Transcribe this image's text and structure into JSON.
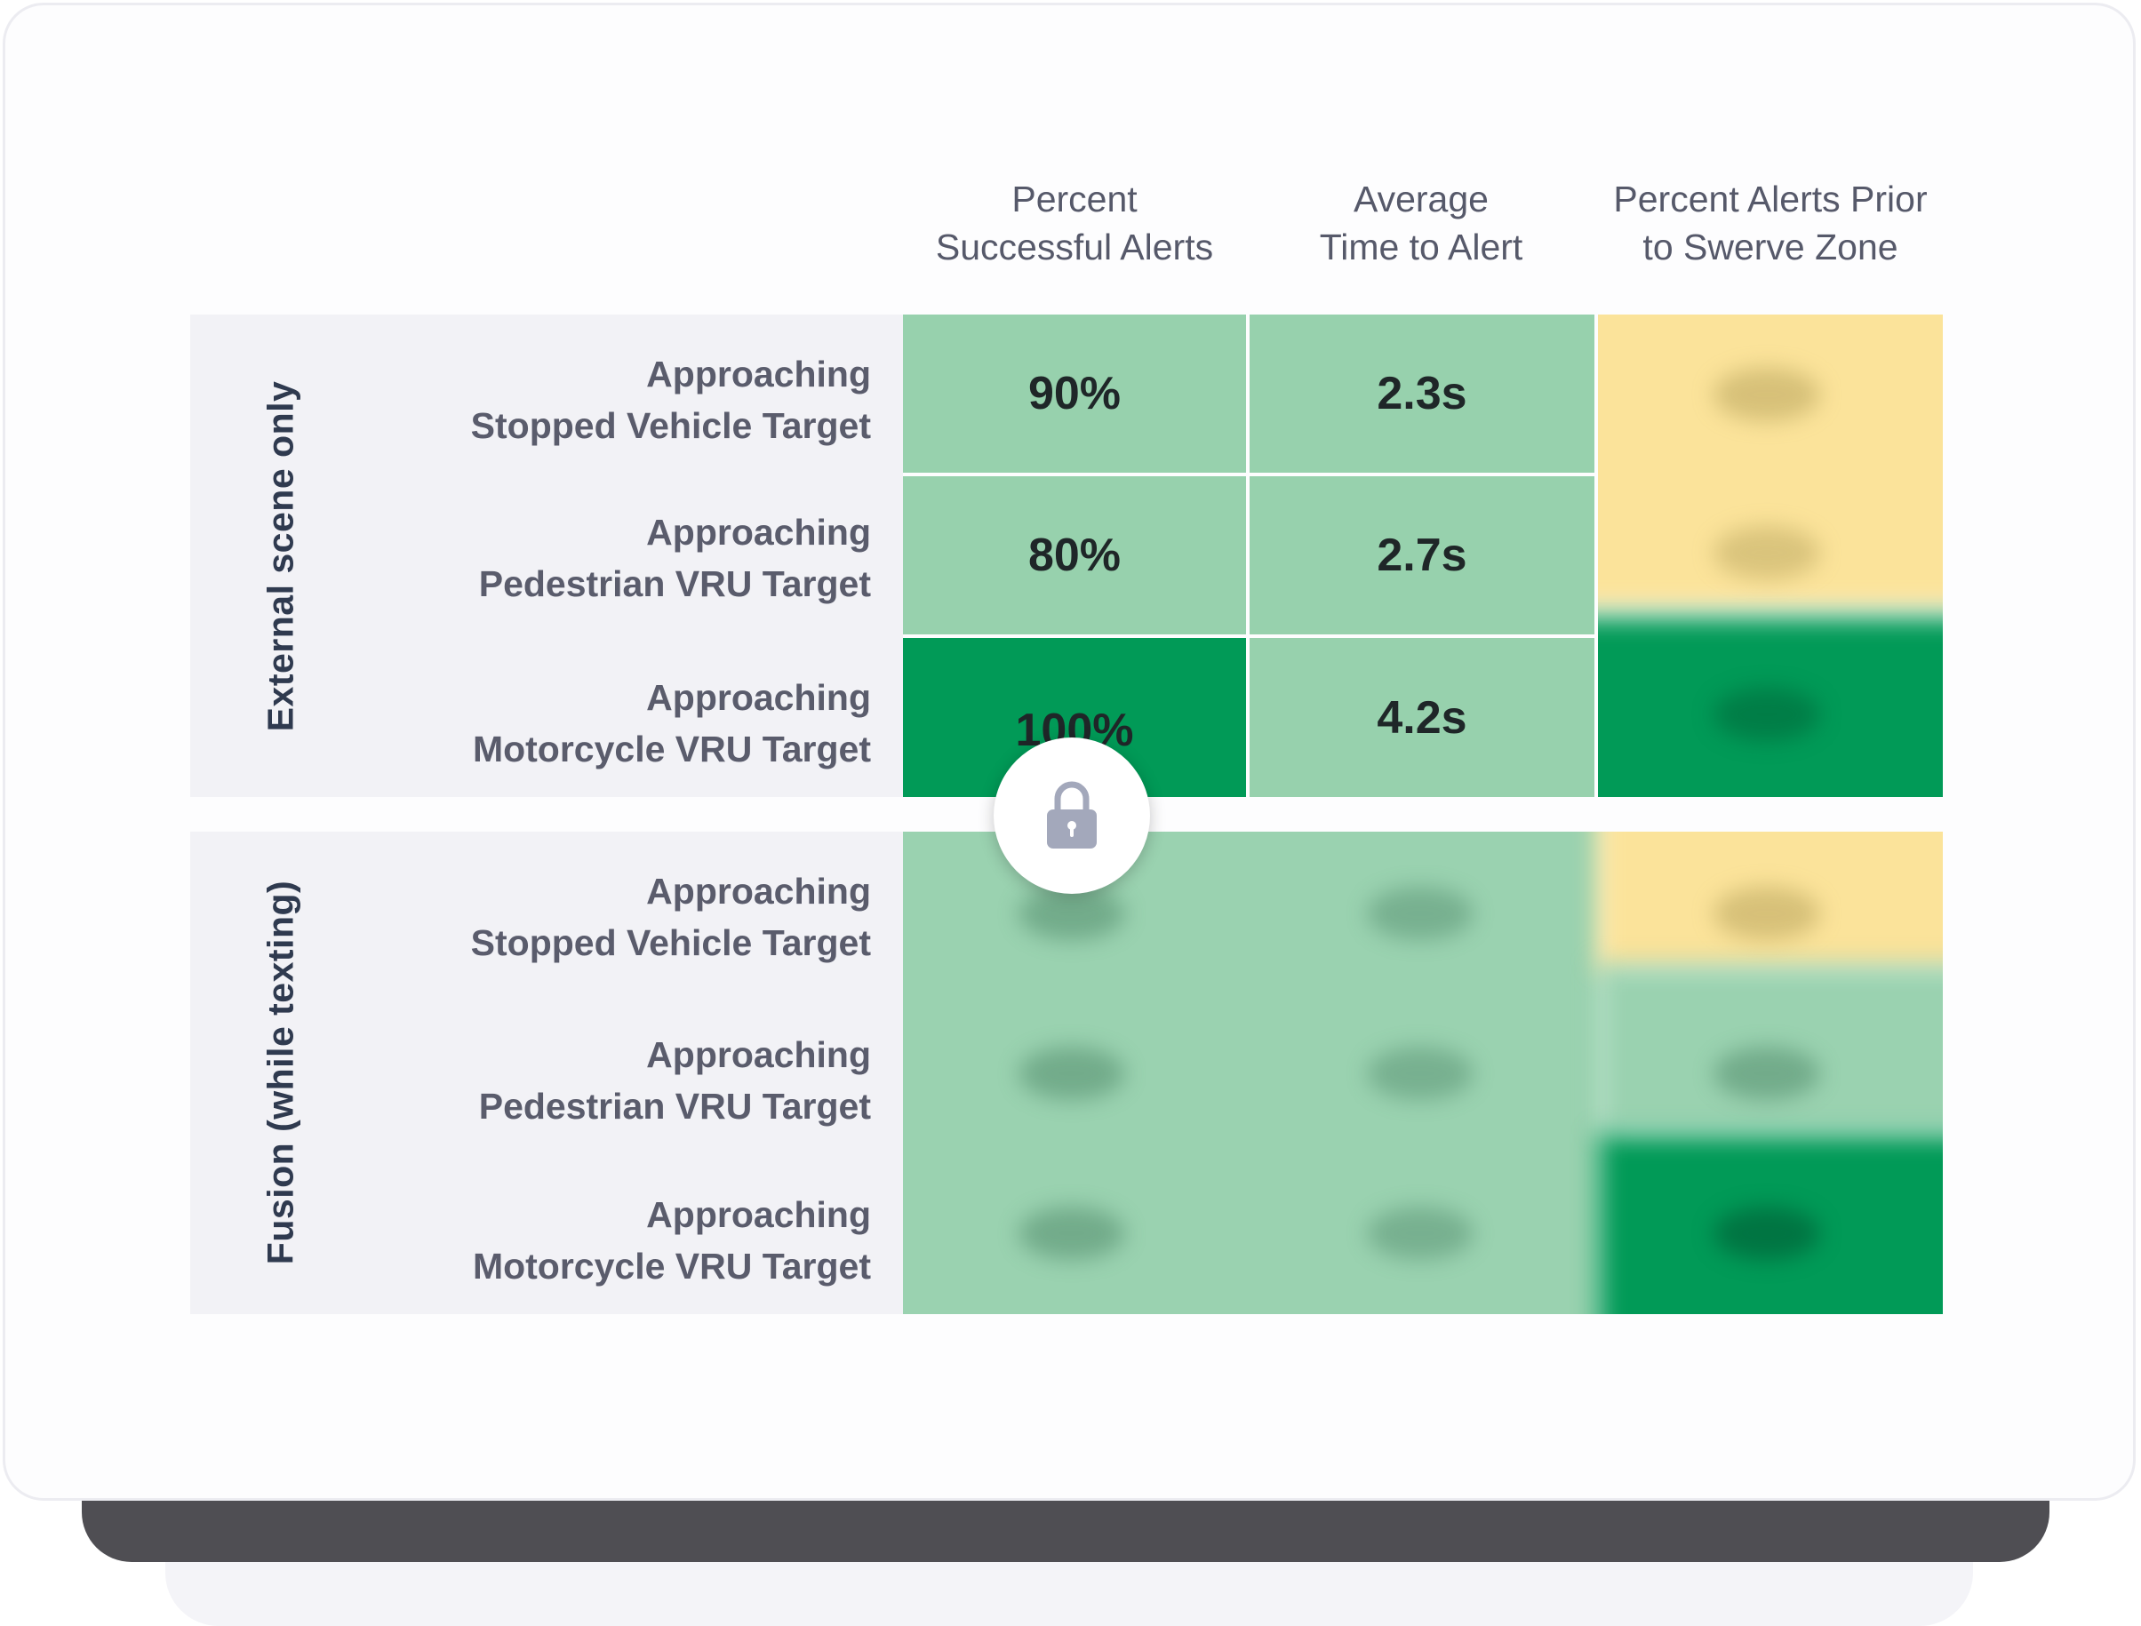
{
  "columns": [
    "Percent\nSuccessful Alerts",
    "Average\nTime to Alert",
    "Percent Alerts Prior\nto Swerve Zone"
  ],
  "groups": [
    {
      "label": "External scene only",
      "rows": [
        {
          "label": "Approaching\nStopped Vehicle Target",
          "percent_successful_alerts": "90%",
          "average_time_to_alert": "2.3s"
        },
        {
          "label": "Approaching\nPedestrian VRU Target",
          "percent_successful_alerts": "80%",
          "average_time_to_alert": "2.7s"
        },
        {
          "label": "Approaching\nMotorcycle VRU Target",
          "percent_successful_alerts": "100%",
          "average_time_to_alert": "4.2s"
        }
      ]
    },
    {
      "label": "Fusion (while texting)",
      "rows": [
        {
          "label": "Approaching\nStopped Vehicle Target"
        },
        {
          "label": "Approaching\nPedestrian VRU Target"
        },
        {
          "label": "Approaching\nMotorcycle VRU Target"
        }
      ]
    }
  ],
  "colors": {
    "light_green": "#97d1ad",
    "dark_green": "#019a57",
    "yellow": "#fbe39a",
    "base_bar": "#4f4e53"
  },
  "icons": {
    "unlock": "padlock-icon"
  }
}
